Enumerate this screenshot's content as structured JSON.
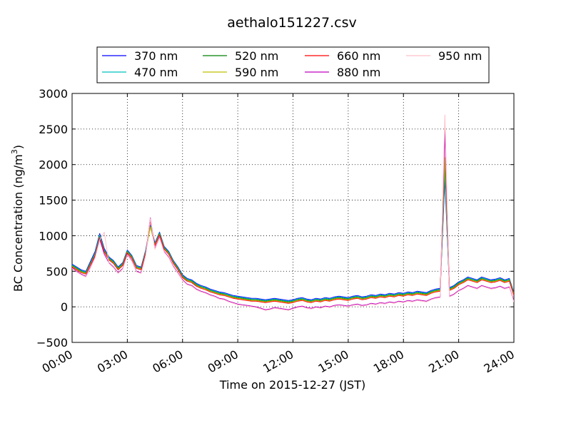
{
  "chart_data": {
    "type": "line",
    "title": "aethalo151227.csv",
    "xlabel": "Time on 2015-12-27 (JST)",
    "ylabel_main": "BC Concentration (ng/m",
    "ylabel_sup": "3",
    "ylabel_close": ")",
    "ylim": [
      -500,
      3000
    ],
    "yticks": [
      "−500",
      "0",
      "500",
      "1000",
      "1500",
      "2000",
      "2500",
      "3000"
    ],
    "ytick_values": [
      -500,
      0,
      500,
      1000,
      1500,
      2000,
      2500,
      3000
    ],
    "xlim_hours": [
      0,
      24
    ],
    "xticks": [
      "00:00",
      "03:00",
      "06:00",
      "09:00",
      "12:00",
      "15:00",
      "18:00",
      "21:00",
      "24:00"
    ],
    "xtick_hours": [
      0,
      3,
      6,
      9,
      12,
      15,
      18,
      21,
      24
    ],
    "grid": true,
    "legend_position": "top-center",
    "x_hours": [
      0.0,
      0.25,
      0.5,
      0.75,
      1.0,
      1.25,
      1.5,
      1.75,
      2.0,
      2.25,
      2.5,
      2.75,
      3.0,
      3.25,
      3.5,
      3.75,
      4.0,
      4.25,
      4.5,
      4.75,
      5.0,
      5.25,
      5.5,
      5.75,
      6.0,
      6.25,
      6.5,
      6.75,
      7.0,
      7.25,
      7.5,
      7.75,
      8.0,
      8.25,
      8.5,
      8.75,
      9.0,
      9.25,
      9.5,
      9.75,
      10.0,
      10.25,
      10.5,
      10.75,
      11.0,
      11.25,
      11.5,
      11.75,
      12.0,
      12.25,
      12.5,
      12.75,
      13.0,
      13.25,
      13.5,
      13.75,
      14.0,
      14.25,
      14.5,
      14.75,
      15.0,
      15.25,
      15.5,
      15.75,
      16.0,
      16.25,
      16.5,
      16.75,
      17.0,
      17.25,
      17.5,
      17.75,
      18.0,
      18.25,
      18.5,
      18.75,
      19.0,
      19.25,
      19.5,
      19.75,
      20.0,
      20.25,
      20.5,
      20.75,
      21.0,
      21.25,
      21.5,
      21.75,
      22.0,
      22.25,
      22.5,
      22.75,
      23.0,
      23.25,
      23.5,
      23.75,
      24.0
    ],
    "series": [
      {
        "name": "370 nm",
        "color": "#0000ff",
        "values": [
          600,
          560,
          520,
          500,
          640,
          780,
          1030,
          820,
          700,
          650,
          560,
          620,
          800,
          720,
          580,
          560,
          800,
          1150,
          900,
          1050,
          850,
          780,
          650,
          560,
          450,
          400,
          380,
          330,
          300,
          280,
          250,
          230,
          210,
          200,
          180,
          160,
          150,
          140,
          130,
          120,
          120,
          110,
          100,
          110,
          120,
          110,
          100,
          90,
          100,
          120,
          130,
          110,
          100,
          120,
          110,
          130,
          120,
          140,
          150,
          140,
          130,
          150,
          160,
          140,
          150,
          170,
          160,
          180,
          170,
          190,
          180,
          200,
          190,
          210,
          200,
          220,
          210,
          200,
          230,
          250,
          260,
          1800,
          270,
          300,
          350,
          380,
          420,
          400,
          380,
          420,
          400,
          380,
          390,
          410,
          380,
          400,
          200
        ]
      },
      {
        "name": "470 nm",
        "color": "#00bfbf",
        "values": [
          590,
          550,
          510,
          490,
          620,
          760,
          1010,
          800,
          690,
          640,
          550,
          610,
          790,
          710,
          570,
          550,
          790,
          1140,
          890,
          1040,
          840,
          770,
          640,
          550,
          440,
          390,
          370,
          320,
          290,
          270,
          240,
          220,
          200,
          190,
          170,
          150,
          140,
          130,
          120,
          110,
          110,
          100,
          90,
          100,
          110,
          100,
          90,
          80,
          90,
          110,
          120,
          100,
          90,
          110,
          100,
          120,
          110,
          130,
          140,
          130,
          120,
          140,
          150,
          130,
          140,
          160,
          150,
          170,
          160,
          180,
          170,
          190,
          180,
          200,
          190,
          210,
          200,
          190,
          220,
          240,
          250,
          1900,
          260,
          290,
          340,
          370,
          410,
          390,
          370,
          410,
          390,
          370,
          380,
          400,
          370,
          390,
          190
        ]
      },
      {
        "name": "520 nm",
        "color": "#008000",
        "values": [
          580,
          540,
          500,
          480,
          610,
          740,
          990,
          790,
          680,
          630,
          540,
          600,
          780,
          700,
          560,
          540,
          780,
          1130,
          880,
          1030,
          830,
          760,
          630,
          540,
          430,
          380,
          360,
          310,
          280,
          260,
          230,
          210,
          190,
          180,
          160,
          140,
          130,
          120,
          110,
          100,
          100,
          90,
          80,
          90,
          100,
          90,
          80,
          70,
          80,
          100,
          110,
          90,
          80,
          100,
          90,
          110,
          100,
          120,
          130,
          120,
          110,
          130,
          140,
          120,
          130,
          150,
          140,
          160,
          150,
          170,
          160,
          180,
          170,
          190,
          180,
          200,
          190,
          180,
          210,
          230,
          240,
          2000,
          250,
          280,
          330,
          360,
          400,
          380,
          360,
          400,
          380,
          360,
          370,
          390,
          360,
          380,
          180
        ]
      },
      {
        "name": "590 nm",
        "color": "#bfbf00",
        "values": [
          570,
          530,
          490,
          470,
          600,
          730,
          980,
          780,
          670,
          620,
          530,
          590,
          770,
          690,
          550,
          530,
          770,
          1120,
          870,
          1020,
          820,
          750,
          620,
          530,
          420,
          370,
          350,
          300,
          270,
          250,
          220,
          200,
          180,
          170,
          150,
          130,
          120,
          110,
          100,
          90,
          90,
          80,
          70,
          80,
          90,
          80,
          70,
          60,
          70,
          90,
          100,
          80,
          70,
          90,
          80,
          100,
          90,
          110,
          120,
          110,
          100,
          120,
          130,
          110,
          120,
          140,
          130,
          150,
          140,
          160,
          150,
          170,
          160,
          180,
          170,
          190,
          180,
          170,
          200,
          220,
          230,
          2100,
          240,
          270,
          320,
          350,
          390,
          370,
          350,
          390,
          370,
          350,
          360,
          380,
          350,
          370,
          170
        ]
      },
      {
        "name": "660 nm",
        "color": "#ff0000",
        "values": [
          560,
          520,
          480,
          460,
          590,
          720,
          970,
          770,
          660,
          610,
          520,
          580,
          760,
          680,
          540,
          520,
          760,
          1210,
          860,
          1010,
          810,
          740,
          610,
          520,
          410,
          360,
          340,
          290,
          260,
          240,
          210,
          190,
          170,
          160,
          140,
          120,
          110,
          100,
          90,
          80,
          80,
          70,
          60,
          70,
          80,
          70,
          60,
          50,
          60,
          80,
          90,
          70,
          60,
          80,
          70,
          90,
          80,
          100,
          110,
          100,
          90,
          110,
          120,
          100,
          110,
          130,
          120,
          140,
          130,
          150,
          140,
          160,
          150,
          170,
          160,
          180,
          170,
          160,
          190,
          210,
          220,
          2500,
          230,
          260,
          310,
          340,
          380,
          360,
          340,
          380,
          360,
          340,
          350,
          370,
          340,
          360,
          160
        ]
      },
      {
        "name": "880 nm",
        "color": "#bf00bf",
        "values": [
          550,
          500,
          460,
          430,
          560,
          700,
          950,
          740,
          620,
          560,
          480,
          540,
          740,
          650,
          500,
          480,
          740,
          1250,
          820,
          980,
          780,
          700,
          570,
          480,
          380,
          320,
          300,
          250,
          220,
          200,
          170,
          150,
          120,
          110,
          80,
          60,
          40,
          30,
          20,
          10,
          0,
          -20,
          -40,
          -30,
          -10,
          -20,
          -30,
          -40,
          -20,
          0,
          10,
          -10,
          -20,
          0,
          -10,
          10,
          0,
          20,
          30,
          20,
          10,
          30,
          40,
          20,
          30,
          50,
          40,
          60,
          50,
          70,
          60,
          80,
          70,
          90,
          80,
          100,
          90,
          80,
          110,
          130,
          140,
          2450,
          150,
          180,
          230,
          260,
          300,
          280,
          260,
          300,
          280,
          260,
          270,
          290,
          260,
          280,
          80
        ]
      },
      {
        "name": "950 nm",
        "color": "#ffc0cb",
        "values": [
          540,
          490,
          450,
          420,
          550,
          690,
          940,
          1050,
          610,
          550,
          470,
          530,
          730,
          640,
          490,
          470,
          730,
          1240,
          810,
          970,
          770,
          690,
          560,
          470,
          370,
          310,
          290,
          240,
          210,
          190,
          160,
          140,
          110,
          100,
          70,
          50,
          30,
          20,
          10,
          0,
          -10,
          -30,
          -50,
          -40,
          -20,
          -30,
          -40,
          -50,
          -30,
          -10,
          0,
          -20,
          -30,
          -10,
          -20,
          0,
          -10,
          10,
          20,
          10,
          0,
          20,
          30,
          10,
          20,
          40,
          30,
          50,
          40,
          60,
          50,
          70,
          60,
          80,
          70,
          90,
          80,
          70,
          100,
          120,
          130,
          2700,
          140,
          170,
          220,
          250,
          290,
          270,
          250,
          290,
          270,
          250,
          260,
          280,
          250,
          270,
          70
        ]
      }
    ]
  }
}
